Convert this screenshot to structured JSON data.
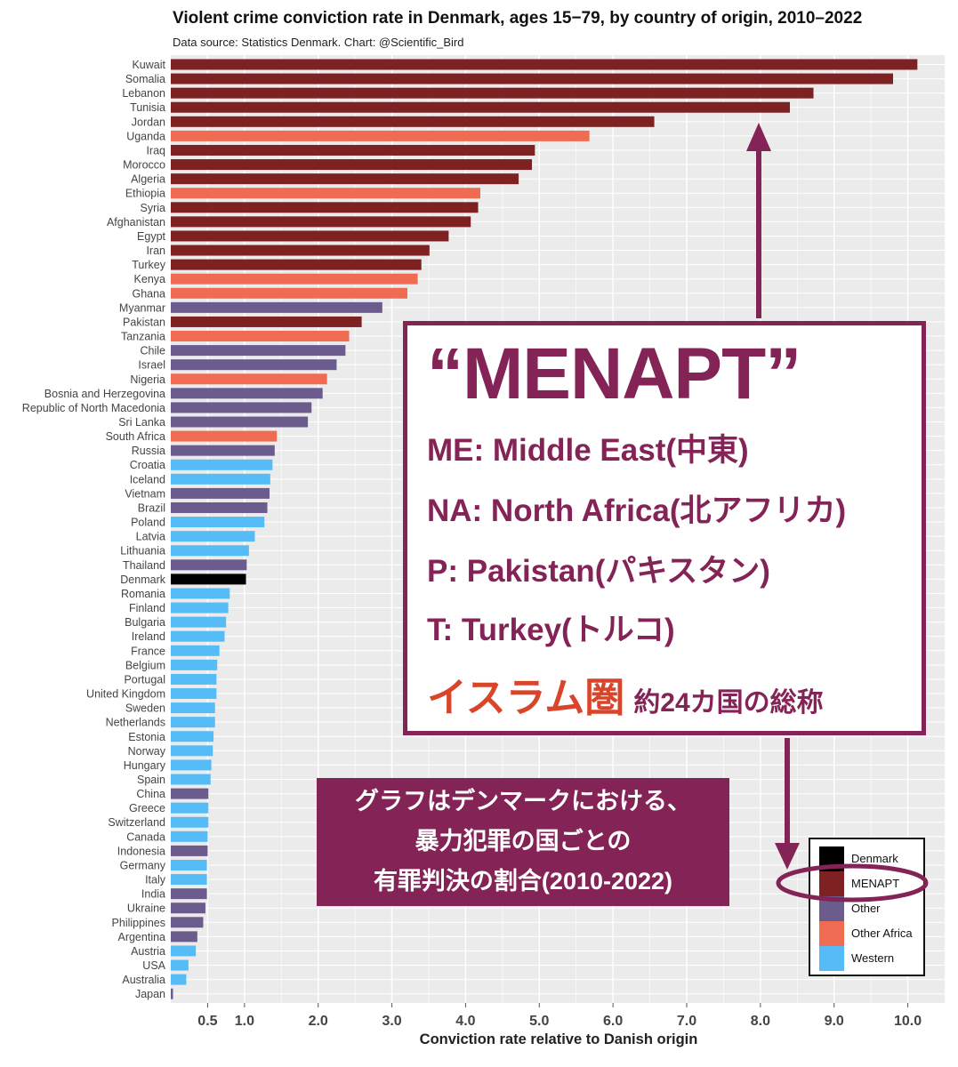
{
  "header": {
    "title": "Violent crime conviction rate in Denmark, ages 15−79, by country of origin, 2010–2022",
    "subtitle": "Data source: Statistics Denmark. Chart: @Scientific_Bird"
  },
  "colors": {
    "Denmark": "#000000",
    "MENAPT": "#7d2123",
    "Other": "#6c5b8d",
    "Other Africa": "#ef6b52",
    "Western": "#56bcf7",
    "panel_bg": "#ebebeb",
    "grid": "#ffffff",
    "accent": "#842356",
    "islam_red": "#d9452b"
  },
  "chart_data": {
    "type": "bar",
    "orientation": "horizontal",
    "title": "Violent crime conviction rate in Denmark, ages 15−79, by country of origin, 2010–2022",
    "xlabel": "Conviction rate relative to Danish origin",
    "ylabel": "",
    "xlim": [
      0,
      10.5
    ],
    "xticks": [
      0.5,
      1.0,
      2.0,
      3.0,
      4.0,
      5.0,
      6.0,
      7.0,
      8.0,
      9.0,
      10.0
    ],
    "xtick_labels": [
      "0.5",
      "1.0",
      "2.0",
      "3.0",
      "4.0",
      "5.0",
      "6.0",
      "7.0",
      "8.0",
      "9.0",
      "10.0"
    ],
    "grid": true,
    "legend_position": "bottom-right",
    "categories": [
      "Kuwait",
      "Somalia",
      "Lebanon",
      "Tunisia",
      "Jordan",
      "Uganda",
      "Iraq",
      "Morocco",
      "Algeria",
      "Ethiopia",
      "Syria",
      "Afghanistan",
      "Egypt",
      "Iran",
      "Turkey",
      "Kenya",
      "Ghana",
      "Myanmar",
      "Pakistan",
      "Tanzania",
      "Chile",
      "Israel",
      "Nigeria",
      "Bosnia and Herzegovina",
      "Republic of North Macedonia",
      "Sri Lanka",
      "South Africa",
      "Russia",
      "Croatia",
      "Iceland",
      "Vietnam",
      "Brazil",
      "Poland",
      "Latvia",
      "Lithuania",
      "Thailand",
      "Denmark",
      "Romania",
      "Finland",
      "Bulgaria",
      "Ireland",
      "France",
      "Belgium",
      "Portugal",
      "United Kingdom",
      "Sweden",
      "Netherlands",
      "Estonia",
      "Norway",
      "Hungary",
      "Spain",
      "China",
      "Greece",
      "Switzerland",
      "Canada",
      "Indonesia",
      "Germany",
      "Italy",
      "India",
      "Ukraine",
      "Philippines",
      "Argentina",
      "Austria",
      "USA",
      "Australia",
      "Japan"
    ],
    "values": [
      10.13,
      9.8,
      8.72,
      8.4,
      6.56,
      5.68,
      4.94,
      4.9,
      4.72,
      4.2,
      4.17,
      4.07,
      3.77,
      3.51,
      3.4,
      3.35,
      3.21,
      2.87,
      2.59,
      2.42,
      2.37,
      2.25,
      2.12,
      2.06,
      1.91,
      1.86,
      1.44,
      1.41,
      1.38,
      1.35,
      1.34,
      1.31,
      1.27,
      1.14,
      1.06,
      1.03,
      1.02,
      0.8,
      0.78,
      0.75,
      0.73,
      0.66,
      0.63,
      0.62,
      0.62,
      0.6,
      0.6,
      0.58,
      0.57,
      0.55,
      0.54,
      0.51,
      0.51,
      0.51,
      0.5,
      0.5,
      0.49,
      0.49,
      0.49,
      0.47,
      0.44,
      0.36,
      0.34,
      0.24,
      0.21,
      0.03
    ],
    "groups": [
      "MENAPT",
      "MENAPT",
      "MENAPT",
      "MENAPT",
      "MENAPT",
      "Other Africa",
      "MENAPT",
      "MENAPT",
      "MENAPT",
      "Other Africa",
      "MENAPT",
      "MENAPT",
      "MENAPT",
      "MENAPT",
      "MENAPT",
      "Other Africa",
      "Other Africa",
      "Other",
      "MENAPT",
      "Other Africa",
      "Other",
      "Other",
      "Other Africa",
      "Other",
      "Other",
      "Other",
      "Other Africa",
      "Other",
      "Western",
      "Western",
      "Other",
      "Other",
      "Western",
      "Western",
      "Western",
      "Other",
      "Denmark",
      "Western",
      "Western",
      "Western",
      "Western",
      "Western",
      "Western",
      "Western",
      "Western",
      "Western",
      "Western",
      "Western",
      "Western",
      "Western",
      "Western",
      "Other",
      "Western",
      "Western",
      "Western",
      "Other",
      "Western",
      "Western",
      "Other",
      "Other",
      "Other",
      "Other",
      "Western",
      "Western",
      "Western",
      "Other"
    ],
    "legend": [
      "Denmark",
      "MENAPT",
      "Other",
      "Other Africa",
      "Western"
    ]
  },
  "menapt_box": {
    "heading": "“MENAPT”",
    "lines": [
      "ME: Middle East(中東)",
      "NA: North Africa(北アフリカ)",
      "P: Pakistan(パキスタン)",
      "T: Turkey(トルコ)"
    ],
    "islam_label": "イスラム圏",
    "islam_suffix": "約24カ国の総称"
  },
  "note_box": {
    "lines": [
      "グラフはデンマークにおける、",
      "暴力犯罪の国ごとの",
      "有罪判決の割合(2010-2022)"
    ]
  }
}
